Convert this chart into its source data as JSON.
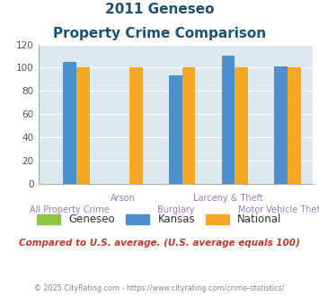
{
  "title_line1": "2011 Geneseo",
  "title_line2": "Property Crime Comparison",
  "categories": [
    "All Property Crime",
    "Arson",
    "Burglary",
    "Larceny & Theft",
    "Motor Vehicle Theft"
  ],
  "geneseo": [
    0,
    0,
    0,
    0,
    0
  ],
  "kansas": [
    105,
    0,
    93,
    110,
    101
  ],
  "national": [
    100,
    100,
    100,
    100,
    100
  ],
  "kansas_color": "#4d8fcc",
  "national_color": "#f5a623",
  "geneseo_color": "#8dc63f",
  "ylim": [
    0,
    120
  ],
  "yticks": [
    0,
    20,
    40,
    60,
    80,
    100,
    120
  ],
  "xlabel_top": [
    "",
    "Arson",
    "",
    "Larceny & Theft",
    ""
  ],
  "xlabel_bottom": [
    "All Property Crime",
    "",
    "Burglary",
    "",
    "Motor Vehicle Theft"
  ],
  "bg_color": "#dce9f0",
  "note": "Compared to U.S. average. (U.S. average equals 100)",
  "footer": "© 2025 CityRating.com - https://www.cityrating.com/crime-statistics/",
  "title_color": "#1a5276",
  "note_color": "#c0392b",
  "footer_color": "#888888",
  "label_color_top": "#9b7fb5",
  "label_color_bottom": "#9b7fb5",
  "bar_width": 0.25
}
